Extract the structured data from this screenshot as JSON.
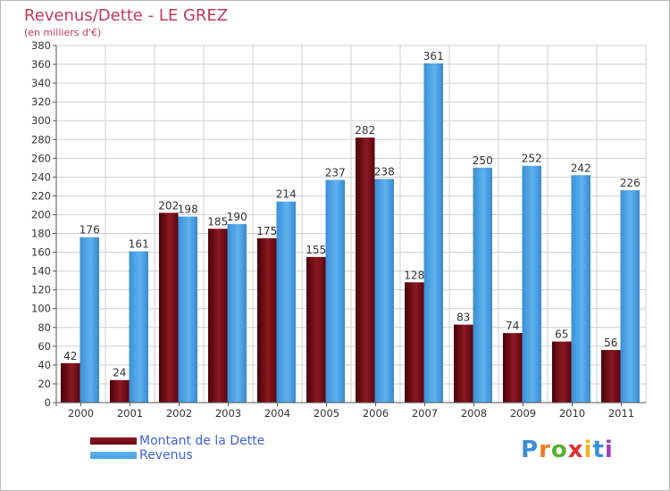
{
  "header": {
    "title": "Revenus/Dette - LE GREZ",
    "subtitle": "(en milliers d'€)"
  },
  "colors": {
    "dette": "#6b0a12",
    "revenus": "#4a9fe0",
    "grid": "#d0d0d0",
    "title": "#c0395e",
    "legend_text": "#4060e0"
  },
  "chart_data": {
    "type": "bar",
    "categories": [
      "2000",
      "2001",
      "2002",
      "2003",
      "2004",
      "2005",
      "2006",
      "2007",
      "2008",
      "2009",
      "2010",
      "2011"
    ],
    "series": [
      {
        "name": "Montant de la Dette",
        "values": [
          42,
          24,
          202,
          185,
          175,
          155,
          282,
          128,
          83,
          74,
          65,
          56
        ]
      },
      {
        "name": "Revenus",
        "values": [
          176,
          161,
          198,
          190,
          214,
          237,
          238,
          361,
          250,
          252,
          242,
          226
        ]
      }
    ],
    "ylim": [
      0,
      380
    ],
    "yticks": [
      0,
      20,
      40,
      60,
      80,
      100,
      120,
      140,
      160,
      180,
      200,
      220,
      240,
      260,
      280,
      300,
      320,
      340,
      360,
      380
    ],
    "grid": true,
    "legend": "bottom-left"
  },
  "legend": {
    "items": [
      {
        "label": "Montant de la Dette"
      },
      {
        "label": "Revenus"
      }
    ]
  },
  "logo": {
    "letters": [
      "P",
      "r",
      "o",
      "x",
      "i",
      "t",
      "i"
    ],
    "colors": [
      "#3a8fd8",
      "#f07a20",
      "#58b030",
      "#e03030",
      "#f0b020",
      "#3a8fd8",
      "#a040c0"
    ]
  }
}
